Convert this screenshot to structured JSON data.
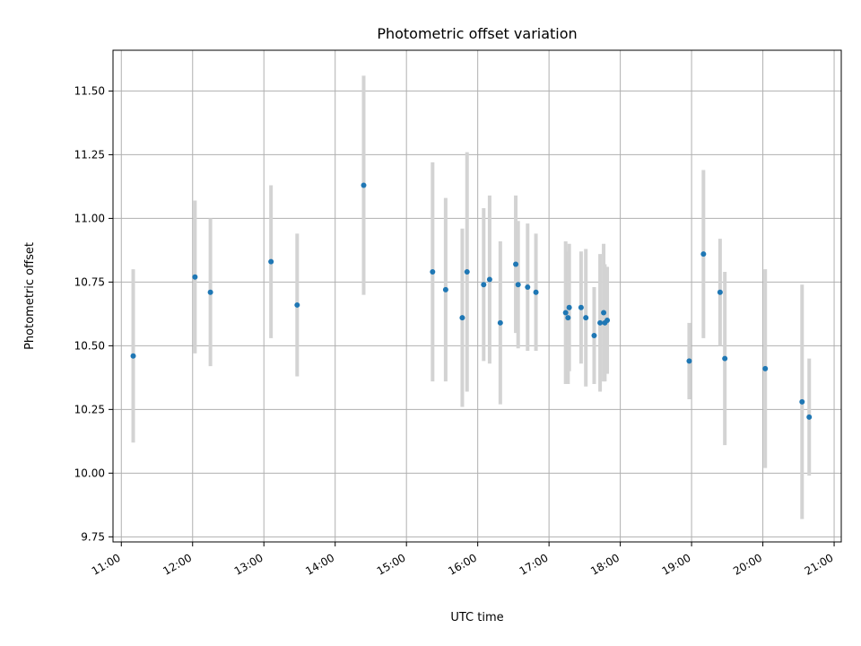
{
  "chart_data": {
    "type": "scatter",
    "title": "Photometric offset variation",
    "xlabel": "UTC time",
    "ylabel": "Photometric offset",
    "x_tick_labels": [
      "11:00",
      "12:00",
      "13:00",
      "14:00",
      "15:00",
      "16:00",
      "17:00",
      "18:00",
      "19:00",
      "20:00",
      "21:00"
    ],
    "y_tick_labels": [
      "9.75",
      "10.00",
      "10.25",
      "10.50",
      "10.75",
      "11.00",
      "11.25",
      "11.50"
    ],
    "y_ticks": [
      9.75,
      10.0,
      10.25,
      10.5,
      10.75,
      11.0,
      11.25,
      11.5
    ],
    "xlim": [
      "10:53",
      "21:06"
    ],
    "ylim": [
      9.73,
      11.66
    ],
    "grid": true,
    "colors": {
      "point": "#1f77b4",
      "errorbar": "#d3d3d3",
      "grid": "#b0b0b0"
    },
    "points": [
      {
        "x": "11:10",
        "y": 10.46,
        "err": 0.34
      },
      {
        "x": "12:02",
        "y": 10.77,
        "err": 0.3
      },
      {
        "x": "12:15",
        "y": 10.71,
        "err": 0.29
      },
      {
        "x": "13:06",
        "y": 10.83,
        "err": 0.3
      },
      {
        "x": "13:28",
        "y": 10.66,
        "err": 0.28
      },
      {
        "x": "14:24",
        "y": 11.13,
        "err": 0.43
      },
      {
        "x": "15:22",
        "y": 10.79,
        "err": 0.43
      },
      {
        "x": "15:33",
        "y": 10.72,
        "err": 0.36
      },
      {
        "x": "15:47",
        "y": 10.61,
        "err": 0.35
      },
      {
        "x": "15:51",
        "y": 10.79,
        "err": 0.47
      },
      {
        "x": "16:05",
        "y": 10.74,
        "err": 0.3
      },
      {
        "x": "16:10",
        "y": 10.76,
        "err": 0.33
      },
      {
        "x": "16:19",
        "y": 10.59,
        "err": 0.32
      },
      {
        "x": "16:32",
        "y": 10.82,
        "err": 0.27
      },
      {
        "x": "16:34",
        "y": 10.74,
        "err": 0.25
      },
      {
        "x": "16:42",
        "y": 10.73,
        "err": 0.25
      },
      {
        "x": "16:49",
        "y": 10.71,
        "err": 0.23
      },
      {
        "x": "17:14",
        "y": 10.63,
        "err": 0.28
      },
      {
        "x": "17:16",
        "y": 10.61,
        "err": 0.26
      },
      {
        "x": "17:17",
        "y": 10.65,
        "err": 0.25
      },
      {
        "x": "17:27",
        "y": 10.65,
        "err": 0.22
      },
      {
        "x": "17:31",
        "y": 10.61,
        "err": 0.27
      },
      {
        "x": "17:38",
        "y": 10.54,
        "err": 0.19
      },
      {
        "x": "17:43",
        "y": 10.59,
        "err": 0.27
      },
      {
        "x": "17:46",
        "y": 10.63,
        "err": 0.27
      },
      {
        "x": "17:47",
        "y": 10.59,
        "err": 0.23
      },
      {
        "x": "17:49",
        "y": 10.6,
        "err": 0.21
      },
      {
        "x": "18:58",
        "y": 10.44,
        "err": 0.15
      },
      {
        "x": "19:10",
        "y": 10.86,
        "err": 0.33
      },
      {
        "x": "19:24",
        "y": 10.71,
        "err": 0.21
      },
      {
        "x": "19:28",
        "y": 10.45,
        "err": 0.34
      },
      {
        "x": "20:02",
        "y": 10.41,
        "err": 0.39
      },
      {
        "x": "20:33",
        "y": 10.28,
        "err": 0.46
      },
      {
        "x": "20:39",
        "y": 10.22,
        "err": 0.23
      }
    ]
  }
}
